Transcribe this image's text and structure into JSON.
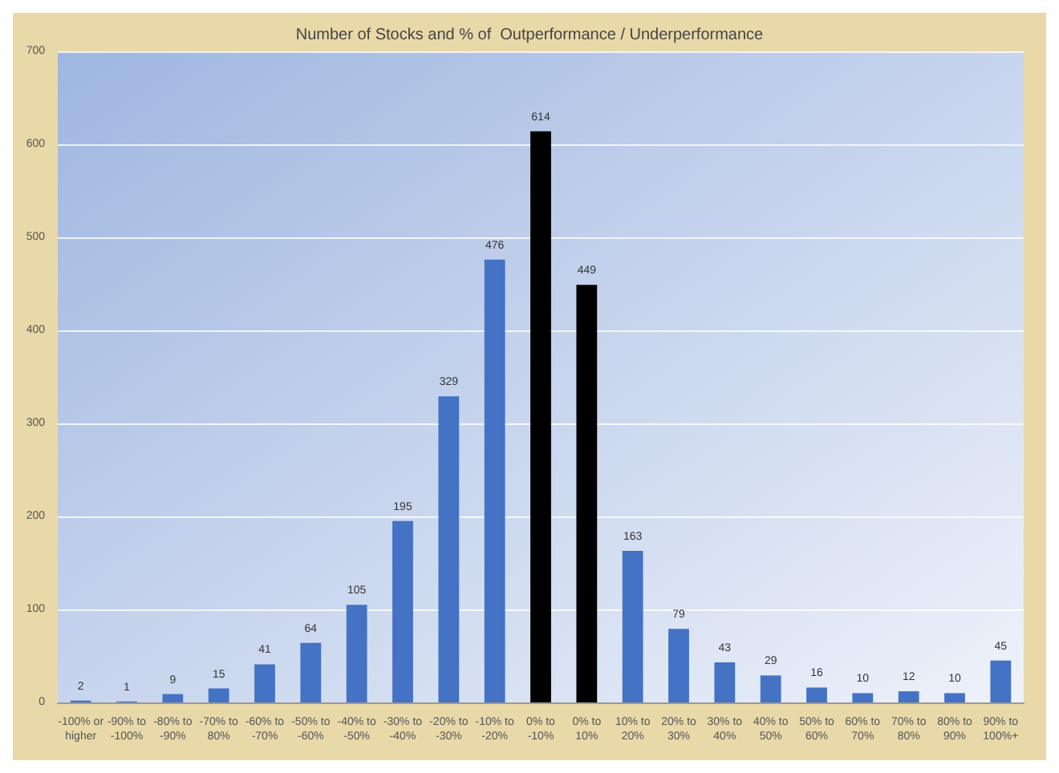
{
  "chart_data": {
    "type": "bar",
    "title": "Number of Stocks and % of  Outperformance / Underperformance",
    "categories": [
      "-100% or higher",
      "-90% to -100%",
      "-80% to -90%",
      "-70% to 80%",
      "-60% to -70%",
      "-50% to -60%",
      "-40% to -50%",
      "-30% to -40%",
      "-20% to -30%",
      "-10% to -20%",
      "0% to -10%",
      "0% to 10%",
      "10% to 20%",
      "20% to 30%",
      "30% to 40%",
      "40% to 50%",
      "50% to 60%",
      "60% to 70%",
      "70% to 80%",
      "80% to 90%",
      "90% to 100%+"
    ],
    "values": [
      2,
      1,
      9,
      15,
      41,
      64,
      105,
      195,
      329,
      476,
      614,
      449,
      163,
      79,
      43,
      29,
      16,
      10,
      12,
      10,
      45
    ],
    "colors": [
      "#4472c4",
      "#4472c4",
      "#4472c4",
      "#4472c4",
      "#4472c4",
      "#4472c4",
      "#4472c4",
      "#4472c4",
      "#4472c4",
      "#4472c4",
      "#000000",
      "#000000",
      "#4472c4",
      "#4472c4",
      "#4472c4",
      "#4472c4",
      "#4472c4",
      "#4472c4",
      "#4472c4",
      "#4472c4",
      "#4472c4"
    ],
    "ylim": [
      0,
      700
    ],
    "yticks": [
      0,
      100,
      200,
      300,
      400,
      500,
      600,
      700
    ],
    "grid": "y",
    "data_labels": true
  }
}
